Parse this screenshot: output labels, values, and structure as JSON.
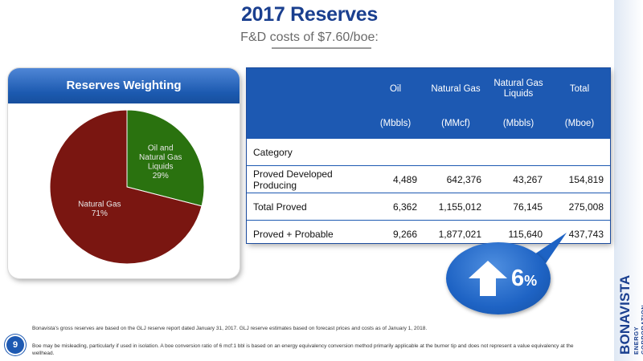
{
  "slide": {
    "title": "2017 Reserves",
    "subtitle": "F&D costs of $7.60/boe:",
    "page_number": "9"
  },
  "brand": {
    "name": "BONAVISTA",
    "tagline": "ENERGY CORPORATION",
    "color": "#1a3f8f"
  },
  "panel": {
    "title": "Reserves Weighting"
  },
  "chart_data": {
    "type": "pie",
    "title": "Reserves Weighting",
    "slices": [
      {
        "label": "Oil and Natural Gas Liquids",
        "label_lines": [
          "Oil and",
          "Natural Gas",
          "Liquids",
          "29%"
        ],
        "value": 29,
        "color": "#2a720f"
      },
      {
        "label": "Natural Gas",
        "label_lines": [
          "Natural Gas",
          "71%"
        ],
        "value": 71,
        "color": "#7a1611"
      }
    ]
  },
  "table": {
    "columns": [
      {
        "header": "",
        "unit": ""
      },
      {
        "header": "Oil",
        "unit": "(Mbbls)"
      },
      {
        "header": "Natural Gas",
        "unit": "(MMcf)"
      },
      {
        "header": "Natural Gas Liquids",
        "unit": "(Mbbls)"
      },
      {
        "header": "Total",
        "unit": "(Mboe)"
      }
    ],
    "category_label": "Category",
    "rows": [
      {
        "label": "Proved Developed Producing",
        "values": [
          "4,489",
          "642,376",
          "43,267",
          "154,819"
        ]
      },
      {
        "label": "Total Proved",
        "values": [
          "6,362",
          "1,155,012",
          "76,145",
          "275,008"
        ]
      },
      {
        "label": "Proved + Probable",
        "values": [
          "9,266",
          "1,877,021",
          "115,640",
          "437,743"
        ]
      }
    ]
  },
  "callout": {
    "value": "6",
    "unit": "%",
    "icon": "up-arrow-icon",
    "color": "#1e63c4"
  },
  "footnotes": {
    "note1": "Bonavista's gross reserves are based on the GLJ reserve report dated January 31, 2017. GLJ reserve estimates based on forecast prices and costs as of January 1, 2018.",
    "note2": "Boe may be misleading, particularly if used in isolation. A boe conversion ratio of 6 mcf:1 bbl is based on an energy equivalency conversion method primarily applicable at the burner tip and does not represent a value equivalency at the wellhead."
  }
}
